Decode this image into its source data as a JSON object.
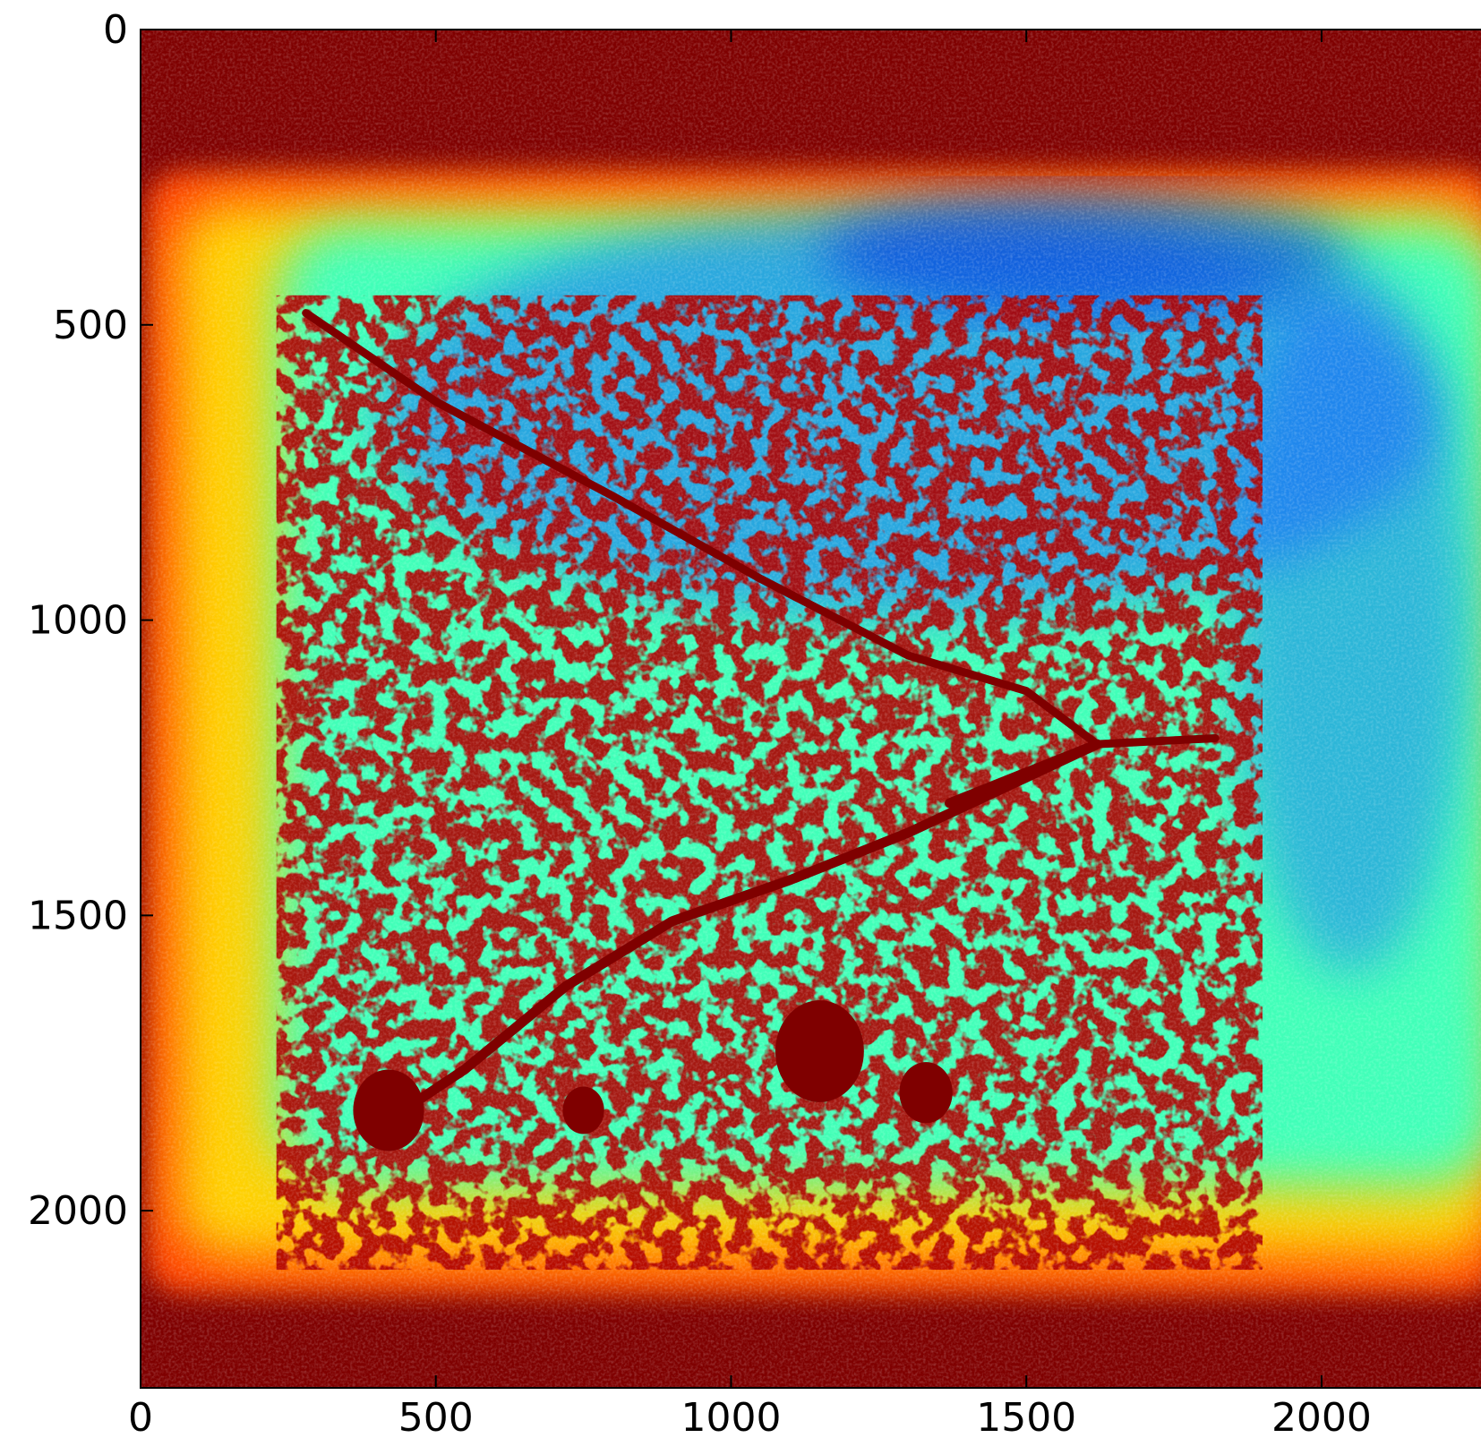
{
  "chart_data": {
    "type": "heatmap",
    "title": "",
    "xlabel": "",
    "ylabel": "",
    "colormap": "jet",
    "xlim": [
      0,
      2270
    ],
    "ylim": [
      2300,
      0
    ],
    "y_inverted": true,
    "x_ticks": [
      "0",
      "500",
      "1000",
      "1500",
      "2000"
    ],
    "y_ticks": [
      "0",
      "500",
      "1000",
      "1500",
      "2000"
    ],
    "x_tick_values": [
      0,
      500,
      1000,
      1500,
      2000
    ],
    "y_tick_values": [
      0,
      500,
      1000,
      1500,
      2000
    ],
    "grid": false,
    "colors": {
      "background_saturated": "#7f0000",
      "edge_band": "#ff4000",
      "mid_field": "#40ffb8",
      "low_field": "#1560ff"
    },
    "features": {
      "upper_crack": [
        [
          280,
          480
        ],
        [
          500,
          630
        ],
        [
          800,
          790
        ],
        [
          1050,
          930
        ],
        [
          1300,
          1060
        ],
        [
          1500,
          1120
        ],
        [
          1620,
          1210
        ]
      ],
      "lower_crack": [
        [
          400,
          1860
        ],
        [
          550,
          1760
        ],
        [
          720,
          1620
        ],
        [
          900,
          1510
        ],
        [
          1100,
          1440
        ],
        [
          1300,
          1360
        ],
        [
          1450,
          1290
        ],
        [
          1620,
          1210
        ]
      ],
      "crack_tail": [
        [
          1620,
          1210
        ],
        [
          1820,
          1200
        ]
      ],
      "crack_spur": [
        [
          1370,
          1310
        ],
        [
          1620,
          1210
        ]
      ],
      "blobs": [
        {
          "x": 1150,
          "y": 1730,
          "r": 75
        },
        {
          "x": 1330,
          "y": 1800,
          "r": 45
        },
        {
          "x": 420,
          "y": 1830,
          "r": 60
        },
        {
          "x": 750,
          "y": 1830,
          "r": 35
        }
      ]
    }
  }
}
